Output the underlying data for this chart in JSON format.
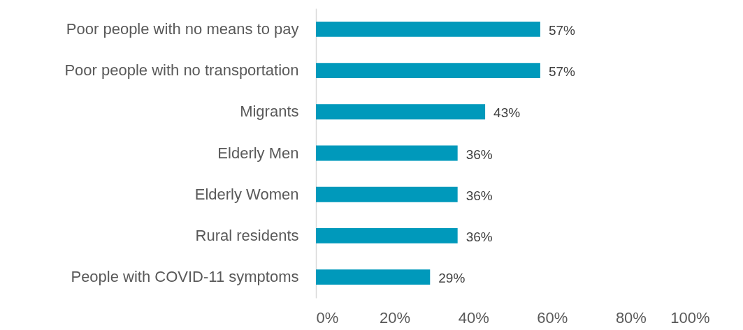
{
  "chart_data": {
    "type": "bar",
    "orientation": "horizontal",
    "categories": [
      "Poor people with no means to pay",
      "Poor people with no transportation",
      "Migrants",
      "Elderly Men",
      "Elderly Women",
      "Rural residents",
      "People with COVID-11 symptoms"
    ],
    "values": [
      57,
      57,
      43,
      36,
      36,
      36,
      29
    ],
    "value_labels": [
      "57%",
      "57%",
      "43%",
      "36%",
      "36%",
      "36%",
      "29%"
    ],
    "color": "#0099bb",
    "xlim": [
      0,
      100
    ],
    "xticks": [
      {
        "value": 0,
        "label": "0%"
      },
      {
        "value": 20,
        "label": "20%"
      },
      {
        "value": 40,
        "label": "40%"
      },
      {
        "value": 60,
        "label": "60%"
      },
      {
        "value": 80,
        "label": "80%"
      },
      {
        "value": 100,
        "label": "100%"
      }
    ],
    "grid": false
  }
}
